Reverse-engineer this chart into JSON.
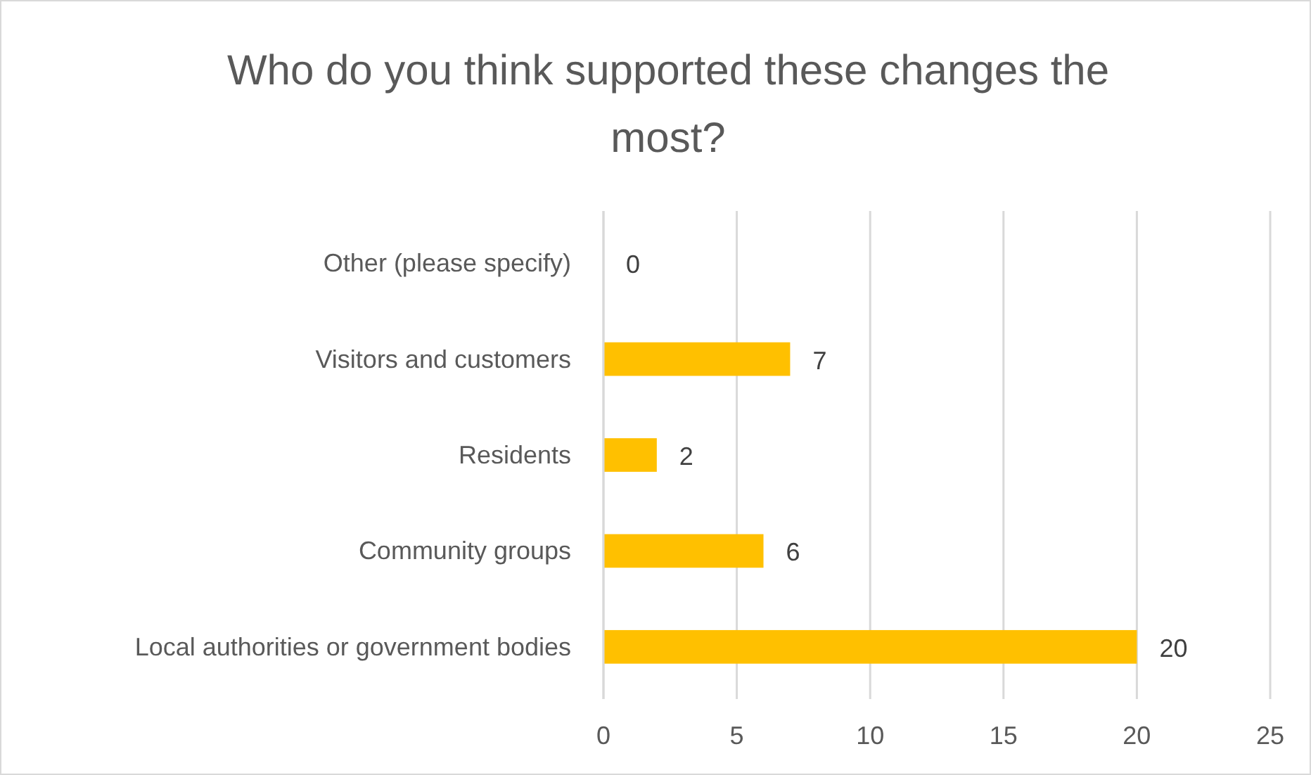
{
  "chart_data": {
    "type": "bar",
    "orientation": "horizontal",
    "title": "Who do you think supported these changes the most?",
    "categories": [
      "Other (please specify)",
      "Visitors and customers",
      "Residents",
      "Community groups",
      "Local authorities or government bodies"
    ],
    "values": [
      0,
      7,
      2,
      6,
      20
    ],
    "color": "#ffc000",
    "xlim": [
      0,
      25
    ],
    "xticks": [
      0,
      5,
      10,
      15,
      20,
      25
    ],
    "grid": "x",
    "data_labels": true
  }
}
